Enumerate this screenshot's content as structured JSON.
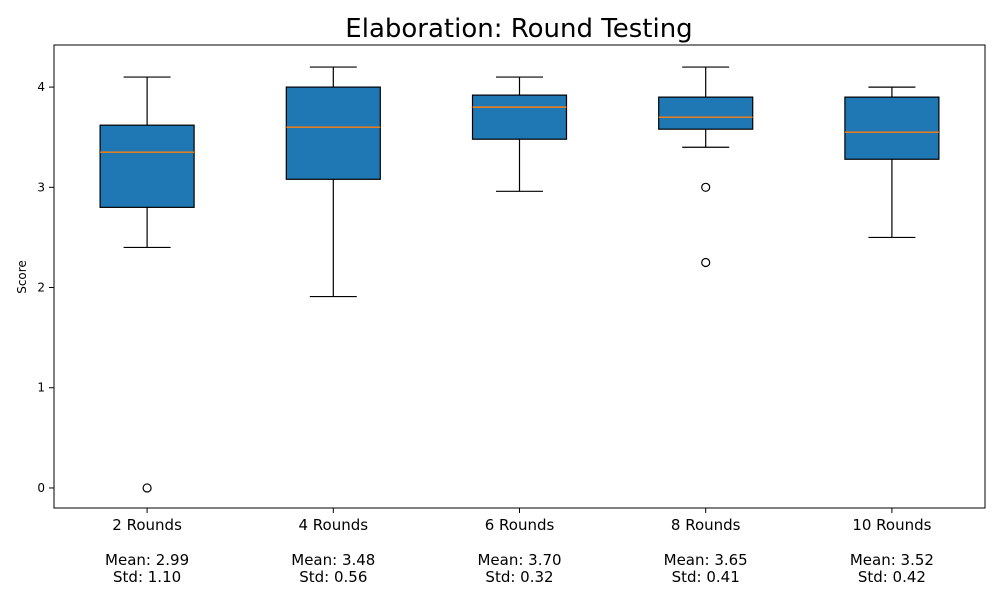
{
  "chart_data": {
    "type": "box",
    "title": "Elaboration: Round Testing",
    "xlabel": "",
    "ylabel": "Score",
    "ylim": [
      -0.2,
      4.42
    ],
    "yticks": [
      0,
      1,
      2,
      3,
      4
    ],
    "grid": false,
    "colors": {
      "box_fill": "#1f77b4",
      "median": "#ff7f0e",
      "edge": "#000000"
    },
    "categories": [
      {
        "name": "2 Rounds",
        "mean_label": "Mean: 2.99",
        "std_label": "Std: 1.10",
        "whisker_low": 2.4,
        "q1": 2.8,
        "median": 3.35,
        "q3": 3.62,
        "whisker_high": 4.1,
        "outliers": [
          0.0
        ]
      },
      {
        "name": "4 Rounds",
        "mean_label": "Mean: 3.48",
        "std_label": "Std: 0.56",
        "whisker_low": 1.91,
        "q1": 3.08,
        "median": 3.6,
        "q3": 4.0,
        "whisker_high": 4.2,
        "outliers": []
      },
      {
        "name": "6 Rounds",
        "mean_label": "Mean: 3.70",
        "std_label": "Std: 0.32",
        "whisker_low": 2.96,
        "q1": 3.48,
        "median": 3.8,
        "q3": 3.92,
        "whisker_high": 4.1,
        "outliers": []
      },
      {
        "name": "8 Rounds",
        "mean_label": "Mean: 3.65",
        "std_label": "Std: 0.41",
        "whisker_low": 3.4,
        "q1": 3.58,
        "median": 3.7,
        "q3": 3.9,
        "whisker_high": 4.2,
        "outliers": [
          3.0,
          2.25
        ]
      },
      {
        "name": "10 Rounds",
        "mean_label": "Mean: 3.52",
        "std_label": "Std: 0.42",
        "whisker_low": 2.5,
        "q1": 3.28,
        "median": 3.55,
        "q3": 3.9,
        "whisker_high": 4.0,
        "outliers": []
      }
    ]
  }
}
